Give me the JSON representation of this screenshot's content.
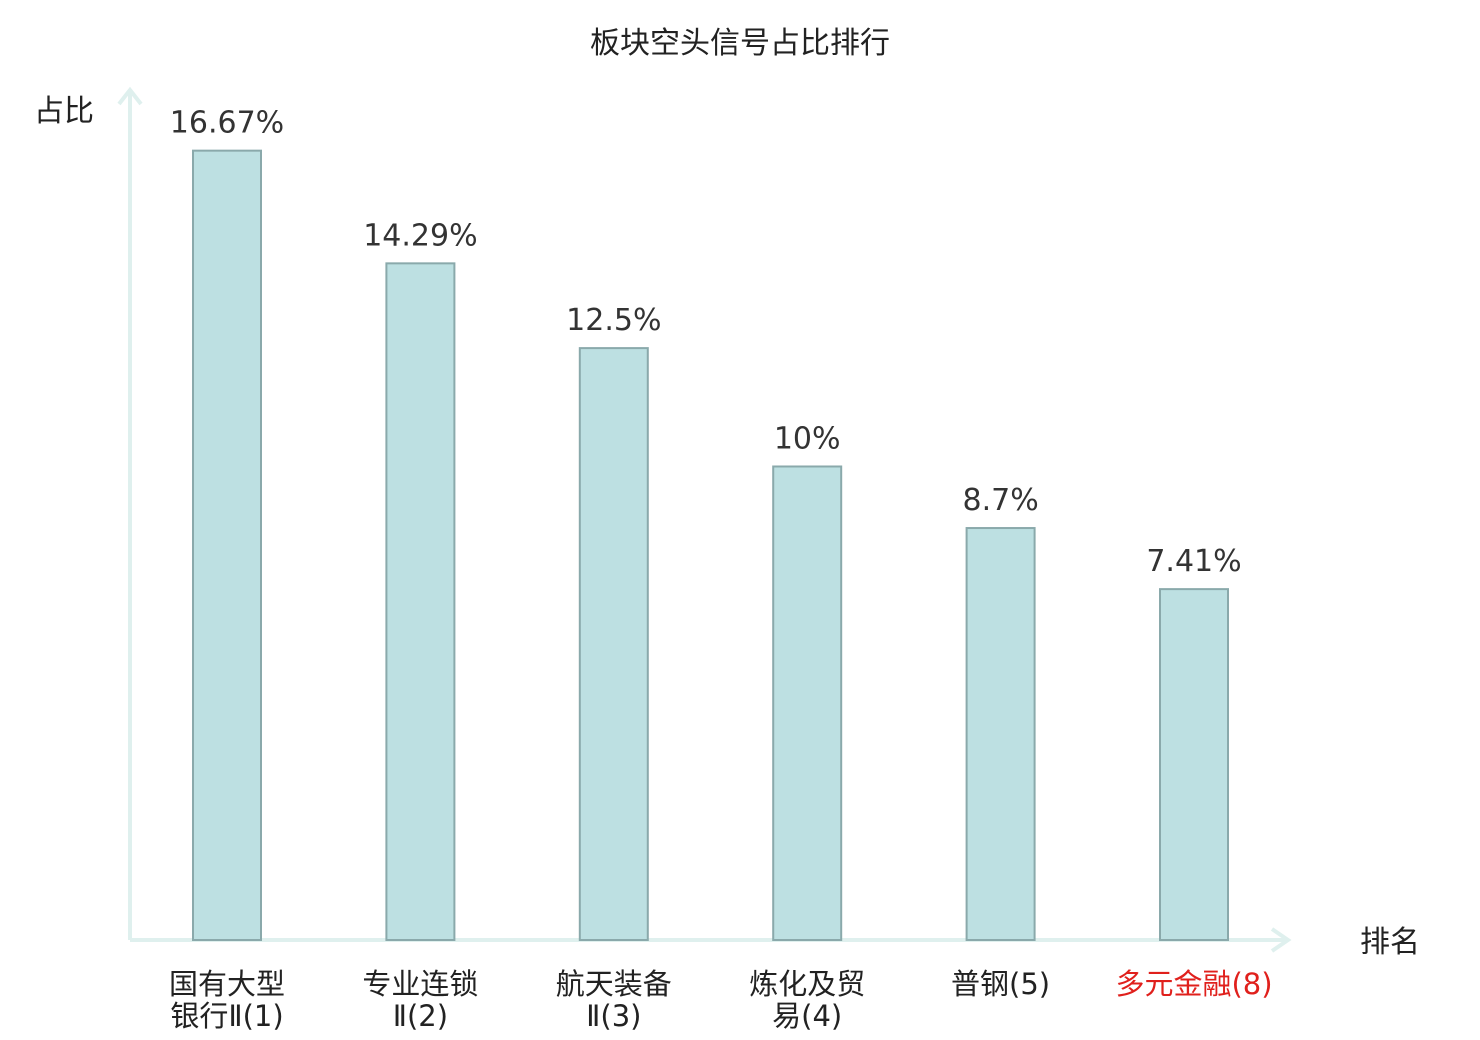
{
  "chart_data": {
    "type": "bar",
    "title": "板块空头信号占比排行",
    "xlabel": "排名",
    "ylabel": "占比",
    "ylim": [
      0,
      18.5
    ],
    "grid": false,
    "categories": [
      [
        "国有大型",
        "银行Ⅱ(1)"
      ],
      [
        "专业连锁",
        "Ⅱ(2)"
      ],
      [
        "航天装备",
        "Ⅱ(3)"
      ],
      [
        "炼化及贸",
        "易(4)"
      ],
      [
        "普钢(5)"
      ],
      [
        "多元金融(8)"
      ]
    ],
    "values": [
      16.67,
      14.29,
      12.5,
      10,
      8.7,
      7.41
    ],
    "value_labels": [
      "16.67%",
      "14.29%",
      "12.5%",
      "10%",
      "8.7%",
      "7.41%"
    ],
    "highlight_index": 5,
    "colors": {
      "bar_fill": "#bde0e2",
      "bar_stroke": "#8aa9ab",
      "axis": "#dff0ee",
      "highlight_text": "#e0201c"
    }
  }
}
